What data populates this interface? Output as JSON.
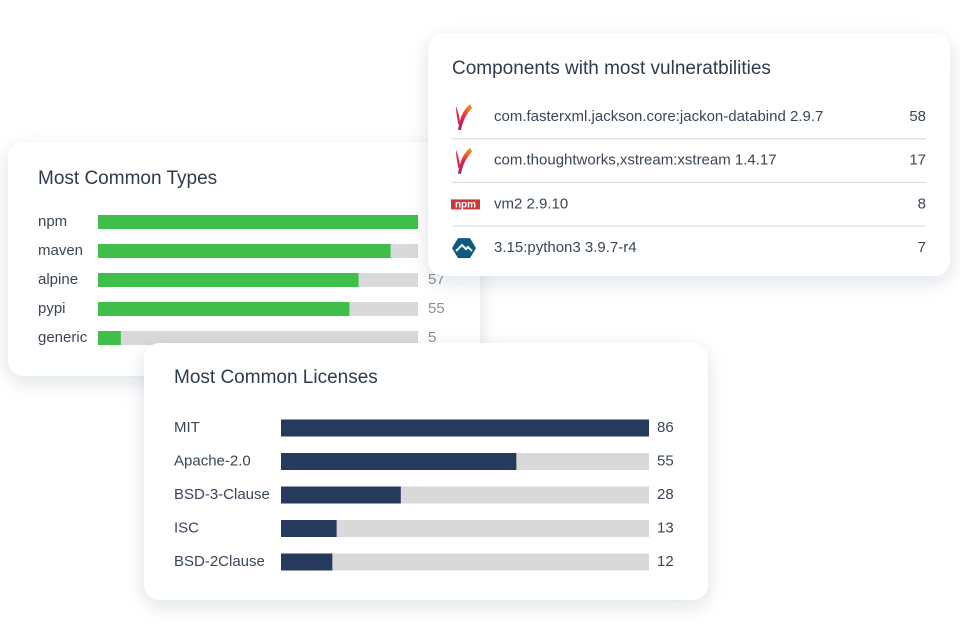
{
  "types": {
    "title": "Most Common Types",
    "items": [
      {
        "label": "npm",
        "value": 70
      },
      {
        "label": "maven",
        "value": 64
      },
      {
        "label": "alpine",
        "value": 57
      },
      {
        "label": "pypi",
        "value": 55
      },
      {
        "label": "generic",
        "value": 5
      }
    ]
  },
  "components": {
    "title": "Components with most vulneratbilities",
    "items": [
      {
        "name": "com.fasterxml.jackson.core:jackon-databind 2.9.7",
        "count": 58
      },
      {
        "name": "com.thoughtworks,xstream:xstream 1.4.17",
        "count": 17
      },
      {
        "name": "vm2 2.9.10",
        "count": 8,
        "logo": "npm"
      },
      {
        "name": "3.15:python3 3.9.7-r4",
        "count": 7
      }
    ]
  },
  "licenses": {
    "title": "Most Common Licenses",
    "items": [
      {
        "label": "MIT",
        "value": 86
      },
      {
        "label": "Apache-2.0",
        "value": 55
      },
      {
        "label": "BSD-3-Clause",
        "value": 28
      },
      {
        "label": "ISC",
        "value": 13
      },
      {
        "label": "BSD-2Clause",
        "value": 12
      }
    ]
  }
}
